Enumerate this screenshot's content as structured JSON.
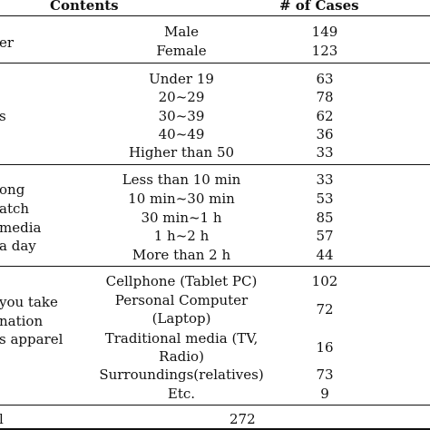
{
  "header": {
    "contents": "Contents",
    "cases": "# of Cases"
  },
  "groups": [
    {
      "label_lines": [
        "er"
      ],
      "rows": [
        {
          "content": [
            "Male"
          ],
          "cases": "149"
        },
        {
          "content": [
            "Female"
          ],
          "cases": "123"
        }
      ]
    },
    {
      "label_lines": [
        "s"
      ],
      "rows": [
        {
          "content": [
            "Under 19"
          ],
          "cases": "63"
        },
        {
          "content": [
            "20~29"
          ],
          "cases": "78"
        },
        {
          "content": [
            "30~39"
          ],
          "cases": "62"
        },
        {
          "content": [
            "40~49"
          ],
          "cases": "36"
        },
        {
          "content": [
            "Higher than 50"
          ],
          "cases": "33"
        }
      ]
    },
    {
      "label_lines": [
        "ong",
        "atch",
        "media",
        "a day"
      ],
      "rows": [
        {
          "content": [
            "Less than 10 min"
          ],
          "cases": "33"
        },
        {
          "content": [
            "10 min~30 min"
          ],
          "cases": "53"
        },
        {
          "content": [
            "30 min~1 h"
          ],
          "cases": "85"
        },
        {
          "content": [
            "1 h~2 h"
          ],
          "cases": "57"
        },
        {
          "content": [
            "More than 2 h"
          ],
          "cases": "44"
        }
      ]
    },
    {
      "label_lines": [
        "you take",
        "nation",
        "s apparel"
      ],
      "rows": [
        {
          "content": [
            "Cellphone (Tablet PC)"
          ],
          "cases": "102"
        },
        {
          "content": [
            "Personal Computer",
            "(Laptop)"
          ],
          "cases": "72"
        },
        {
          "content": [
            "Traditional media (TV,",
            "Radio)"
          ],
          "cases": "16"
        },
        {
          "content": [
            "Surroundings(relatives)"
          ],
          "cases": "73"
        },
        {
          "content": [
            "Etc."
          ],
          "cases": "9"
        }
      ]
    }
  ],
  "total": {
    "label": "l",
    "cases": "272"
  }
}
